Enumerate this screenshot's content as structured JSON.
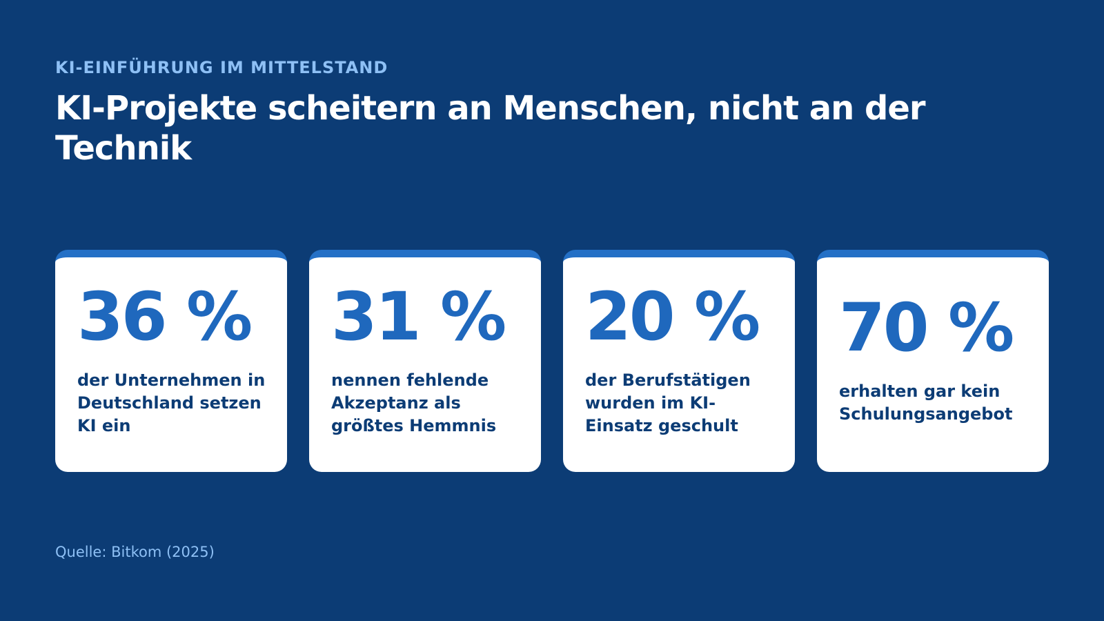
{
  "header": {
    "eyebrow": "KI-EINFÜHRUNG IM MITTELSTAND",
    "title": "KI-Projekte scheitern an Menschen, nicht an der Technik"
  },
  "stats": [
    {
      "value": "36 %",
      "description": "der Unternehmen in Deutschland setzen KI ein"
    },
    {
      "value": "31 %",
      "description": "nennen fehlende Akzeptanz als größtes Hemmnis"
    },
    {
      "value": "20 %",
      "description": "der Berufstätigen wurden im KI-Einsatz geschult"
    },
    {
      "value": "70 %",
      "description": "erhalten gar kein Schulungsangebot"
    }
  ],
  "footer": {
    "source": "Quelle: Bitkom (2025)"
  },
  "colors": {
    "background": "#0c3c75",
    "accent": "#1f68bd",
    "eyebrow": "#8ec0f5",
    "card": "#ffffff"
  }
}
